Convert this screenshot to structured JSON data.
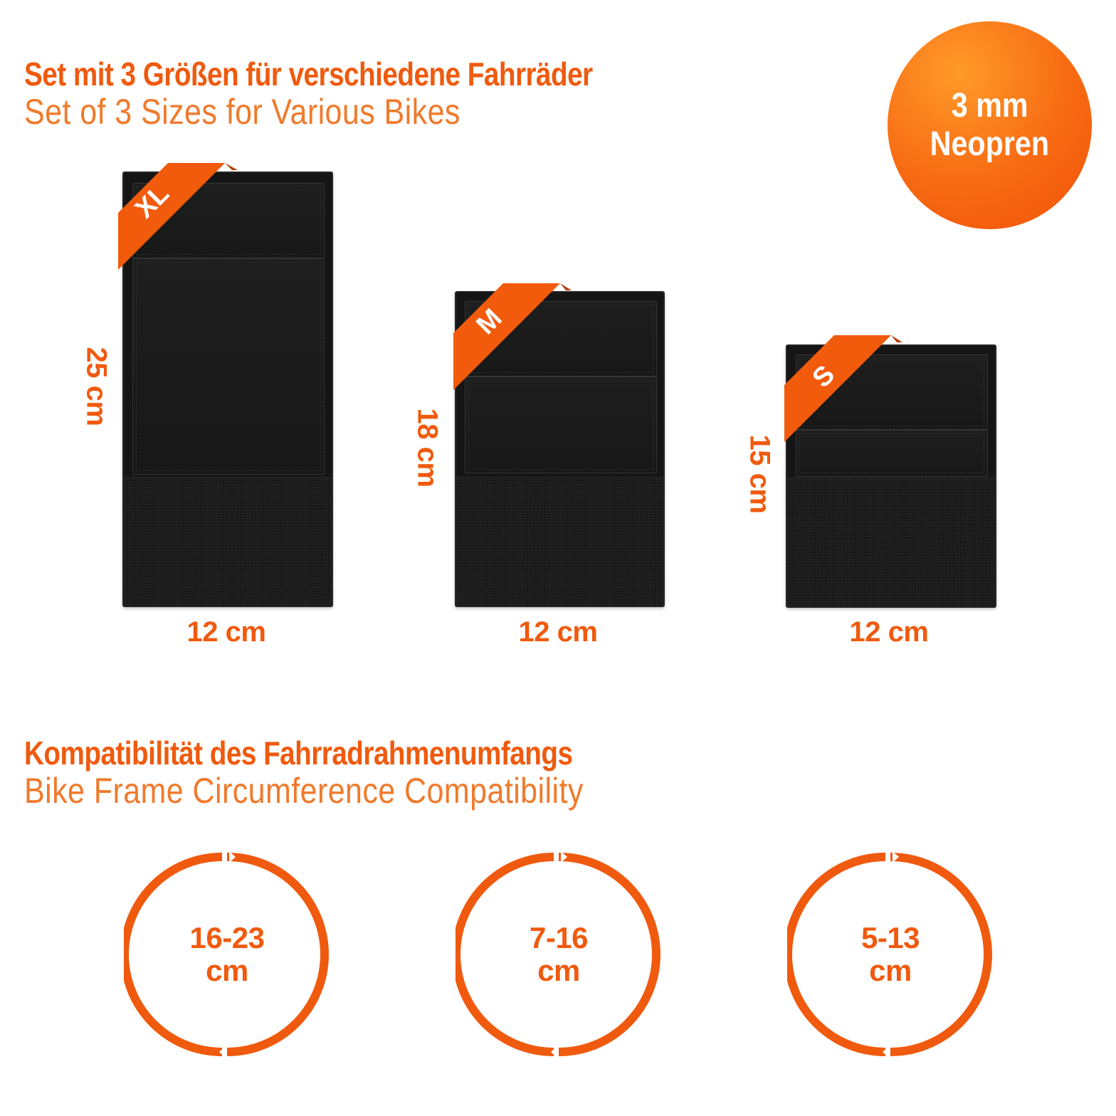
{
  "heading_sizes": {
    "de": "Set mit 3 Größen für verschiedene Fahrräder",
    "en": "Set of 3 Sizes for Various Bikes"
  },
  "badge": {
    "line1": "3 mm",
    "line2": "Neopren"
  },
  "products": [
    {
      "size": "XL",
      "height": "25 cm",
      "width": "12 cm"
    },
    {
      "size": "M",
      "height": "18 cm",
      "width": "12 cm"
    },
    {
      "size": "S",
      "height": "15 cm",
      "width": "12 cm"
    }
  ],
  "heading_compat": {
    "de": "Kompatibilität des Fahrradrahmenumfangs",
    "en": "Bike Frame Circumference Compatibility"
  },
  "circumference": [
    {
      "range": "16-23",
      "unit": "cm"
    },
    {
      "range": "7-16",
      "unit": "cm"
    },
    {
      "range": "5-13",
      "unit": "cm"
    }
  ],
  "colors": {
    "accent": "#f05a0e",
    "product": "#151515"
  }
}
